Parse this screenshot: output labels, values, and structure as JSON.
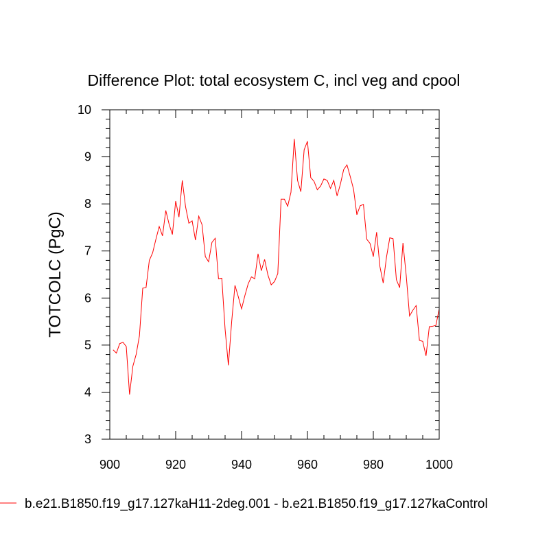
{
  "chart_data": {
    "type": "line",
    "title": "Difference Plot: total ecosystem C, incl veg and cpool",
    "xlabel": "",
    "ylabel": "TOTCOLC  (PgC)",
    "xlim": [
      900,
      1000
    ],
    "ylim": [
      3,
      10
    ],
    "xticks": [
      900,
      920,
      940,
      960,
      980,
      1000
    ],
    "yticks": [
      3,
      4,
      5,
      6,
      7,
      8,
      9,
      10
    ],
    "xtick_labels": [
      "900",
      "920",
      "940",
      "960",
      "980",
      "1000"
    ],
    "ytick_labels": [
      "3",
      "4",
      "5",
      "6",
      "7",
      "8",
      "9",
      "10"
    ],
    "grid": false,
    "legend_position": "bottom",
    "series": [
      {
        "name": "b.e21.B1850.f19_g17.127kaH11-2deg.001 - b.e21.B1850.f19_g17.127kaControl",
        "color": "#ff0000",
        "x": [
          901,
          902,
          903,
          904,
          905,
          906,
          907,
          908,
          909,
          910,
          911,
          912,
          913,
          914,
          915,
          916,
          917,
          918,
          919,
          920,
          921,
          922,
          923,
          924,
          925,
          926,
          927,
          928,
          929,
          930,
          931,
          932,
          933,
          934,
          935,
          936,
          937,
          938,
          939,
          940,
          941,
          942,
          943,
          944,
          945,
          946,
          947,
          948,
          949,
          950,
          951,
          952,
          953,
          954,
          955,
          956,
          957,
          958,
          959,
          960,
          961,
          962,
          963,
          964,
          965,
          966,
          967,
          968,
          969,
          970,
          971,
          972,
          973,
          974,
          975,
          976,
          977,
          978,
          979,
          980,
          981,
          982,
          983,
          984,
          985,
          986,
          987,
          988,
          989,
          990,
          991,
          992,
          993,
          994,
          995,
          996,
          997,
          998,
          999,
          1000
        ],
        "values": [
          4.9,
          4.83,
          5.03,
          5.06,
          4.97,
          3.95,
          4.55,
          4.8,
          5.2,
          6.21,
          6.22,
          6.8,
          6.96,
          7.25,
          7.52,
          7.32,
          7.86,
          7.57,
          7.35,
          8.06,
          7.72,
          8.5,
          7.94,
          7.59,
          7.64,
          7.23,
          7.74,
          7.56,
          6.88,
          6.77,
          7.18,
          7.27,
          6.41,
          6.42,
          5.34,
          4.57,
          5.5,
          6.27,
          6.03,
          5.77,
          6.05,
          6.3,
          6.45,
          6.41,
          6.94,
          6.58,
          6.82,
          6.49,
          6.28,
          6.35,
          6.52,
          8.1,
          8.1,
          7.95,
          8.25,
          9.38,
          8.5,
          8.26,
          9.15,
          9.33,
          8.56,
          8.48,
          8.3,
          8.38,
          8.53,
          8.5,
          8.33,
          8.5,
          8.17,
          8.42,
          8.73,
          8.83,
          8.58,
          8.31,
          7.77,
          7.96,
          7.99,
          7.25,
          7.16,
          6.88,
          7.4,
          6.67,
          6.32,
          6.87,
          7.28,
          7.26,
          6.39,
          6.22,
          7.17,
          6.47,
          5.62,
          5.74,
          5.84,
          5.1,
          5.08,
          4.77,
          5.39,
          5.4,
          5.42,
          5.77
        ]
      }
    ]
  }
}
